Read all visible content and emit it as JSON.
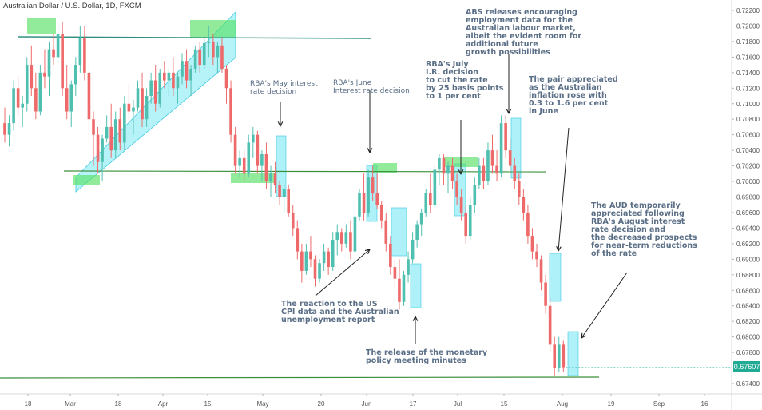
{
  "header": {
    "title": "Australian Dollar / U.S. Dollar, 1D, FXCM"
  },
  "last_price": "0.67607",
  "colors": {
    "bull": "#4fbfb0",
    "bear": "#ee6a6a",
    "highlight_cyan": "#5ee4f2",
    "highlight_green": "#56e066",
    "support_line": "#3a8f3a",
    "resistance_line": "#2f8f7f",
    "annotation_text": "#5a6e86",
    "price_tag": "#22ab94"
  },
  "annotations": [
    {
      "id": "may-rba",
      "text": "RBA's May interest\nrate decision",
      "bold": false
    },
    {
      "id": "june-rba",
      "text": "RBA's June\nInterest rate decision",
      "bold": false
    },
    {
      "id": "july-rba",
      "text": "RBA's July\nI.R. decision\nto cut the rate\nby 25 basis points\nto 1 per cent",
      "bold": true
    },
    {
      "id": "abs-employment",
      "text": "ABS releases encouraging\nemployment data for the\nAustralian labour market,\nalbeit the evident room for\nadditional future\ngrowth possibilities",
      "bold": true
    },
    {
      "id": "inflation",
      "text": "The pair appreciated\nas the Australian\ninflation rose with\n0.3 to 1.6 per cent\nin June",
      "bold": true
    },
    {
      "id": "august-rba",
      "text": "The AUD temporarily\nappreciated following\nRBA's August interest\nrate decision and\nthe decreased prospects\nfor near-term reductions\nof the rate",
      "bold": true
    },
    {
      "id": "us-cpi",
      "text": "The reaction to the US\nCPI data and the Australian\nunemployment report",
      "bold": true
    },
    {
      "id": "minutes",
      "text": "The release of the monetary\npolicy meeting minutes",
      "bold": true
    }
  ],
  "chart_data": {
    "type": "candlestick",
    "title": "Australian Dollar / U.S. Dollar, 1D, FXCM",
    "ylim": [
      0.673,
      0.723
    ],
    "y_ticks": [
      "0.72200",
      "0.72000",
      "0.71800",
      "0.71600",
      "0.71400",
      "0.71200",
      "0.71000",
      "0.70800",
      "0.70600",
      "0.70400",
      "0.70200",
      "0.70000",
      "0.69800",
      "0.69600",
      "0.69400",
      "0.69200",
      "0.69000",
      "0.68800",
      "0.68600",
      "0.68400",
      "0.68200",
      "0.68000",
      "0.67800",
      "0.67600",
      "0.67400"
    ],
    "x_ticks": [
      "18",
      "Mar",
      "18",
      "Apr",
      "15",
      "May",
      "20",
      "Jun",
      "17",
      "Jul",
      "15",
      "Aug",
      "19",
      "Sep",
      "16"
    ],
    "last_price": 0.67607,
    "candles": [
      [
        0.7075,
        0.7095,
        0.705,
        0.706
      ],
      [
        0.706,
        0.7085,
        0.7045,
        0.7075
      ],
      [
        0.7075,
        0.713,
        0.7065,
        0.712
      ],
      [
        0.712,
        0.7135,
        0.7085,
        0.7095
      ],
      [
        0.7095,
        0.711,
        0.707,
        0.71
      ],
      [
        0.71,
        0.716,
        0.709,
        0.715
      ],
      [
        0.715,
        0.7175,
        0.711,
        0.712
      ],
      [
        0.712,
        0.714,
        0.708,
        0.709
      ],
      [
        0.709,
        0.715,
        0.7085,
        0.714
      ],
      [
        0.714,
        0.717,
        0.712,
        0.7135
      ],
      [
        0.7135,
        0.718,
        0.711,
        0.717
      ],
      [
        0.717,
        0.719,
        0.715,
        0.716
      ],
      [
        0.716,
        0.72,
        0.715,
        0.719
      ],
      [
        0.719,
        0.7205,
        0.711,
        0.712
      ],
      [
        0.712,
        0.715,
        0.708,
        0.709
      ],
      [
        0.709,
        0.713,
        0.707,
        0.7125
      ],
      [
        0.7125,
        0.716,
        0.711,
        0.715
      ],
      [
        0.715,
        0.72,
        0.714,
        0.7185
      ],
      [
        0.7185,
        0.72,
        0.713,
        0.714
      ],
      [
        0.714,
        0.715,
        0.705,
        0.708
      ],
      [
        0.708,
        0.709,
        0.702,
        0.706
      ],
      [
        0.706,
        0.707,
        0.701,
        0.7025
      ],
      [
        0.7025,
        0.706,
        0.7,
        0.7055
      ],
      [
        0.7055,
        0.7085,
        0.705,
        0.707
      ],
      [
        0.707,
        0.71,
        0.703,
        0.704
      ],
      [
        0.704,
        0.709,
        0.703,
        0.708
      ],
      [
        0.708,
        0.7095,
        0.704,
        0.705
      ],
      [
        0.705,
        0.711,
        0.704,
        0.71
      ],
      [
        0.71,
        0.7125,
        0.708,
        0.709
      ],
      [
        0.709,
        0.7105,
        0.706,
        0.7095
      ],
      [
        0.7095,
        0.713,
        0.709,
        0.712
      ],
      [
        0.712,
        0.714,
        0.707,
        0.708
      ],
      [
        0.708,
        0.712,
        0.707,
        0.711
      ],
      [
        0.711,
        0.714,
        0.71,
        0.713
      ],
      [
        0.713,
        0.715,
        0.709,
        0.71
      ],
      [
        0.71,
        0.7145,
        0.7095,
        0.714
      ],
      [
        0.714,
        0.7155,
        0.712,
        0.713
      ],
      [
        0.713,
        0.7145,
        0.711,
        0.714
      ],
      [
        0.714,
        0.716,
        0.711,
        0.712
      ],
      [
        0.712,
        0.714,
        0.71,
        0.7135
      ],
      [
        0.7135,
        0.7165,
        0.7125,
        0.7155
      ],
      [
        0.7155,
        0.717,
        0.712,
        0.713
      ],
      [
        0.713,
        0.715,
        0.711,
        0.7145
      ],
      [
        0.7145,
        0.7175,
        0.714,
        0.717
      ],
      [
        0.717,
        0.718,
        0.714,
        0.715
      ],
      [
        0.715,
        0.7185,
        0.7145,
        0.7178
      ],
      [
        0.7178,
        0.72,
        0.716,
        0.718
      ],
      [
        0.718,
        0.719,
        0.715,
        0.716
      ],
      [
        0.716,
        0.718,
        0.714,
        0.7175
      ],
      [
        0.7175,
        0.7185,
        0.714,
        0.7145
      ],
      [
        0.7145,
        0.715,
        0.71,
        0.712
      ],
      [
        0.712,
        0.713,
        0.705,
        0.706
      ],
      [
        0.706,
        0.707,
        0.701,
        0.702
      ],
      [
        0.702,
        0.704,
        0.7005,
        0.703
      ],
      [
        0.703,
        0.704,
        0.7,
        0.701
      ],
      [
        0.701,
        0.706,
        0.7005,
        0.705
      ],
      [
        0.705,
        0.707,
        0.703,
        0.706
      ],
      [
        0.706,
        0.7065,
        0.701,
        0.702
      ],
      [
        0.702,
        0.704,
        0.7,
        0.7035
      ],
      [
        0.7035,
        0.705,
        0.699,
        0.7
      ],
      [
        0.7,
        0.702,
        0.698,
        0.701
      ],
      [
        0.701,
        0.7025,
        0.6985,
        0.6995
      ],
      [
        0.6995,
        0.7,
        0.697,
        0.698
      ],
      [
        0.698,
        0.6995,
        0.696,
        0.699
      ],
      [
        0.699,
        0.6995,
        0.6955,
        0.696
      ],
      [
        0.696,
        0.697,
        0.693,
        0.694
      ],
      [
        0.694,
        0.695,
        0.69,
        0.691
      ],
      [
        0.691,
        0.692,
        0.687,
        0.6885
      ],
      [
        0.6885,
        0.692,
        0.688,
        0.691
      ],
      [
        0.691,
        0.693,
        0.689,
        0.69
      ],
      [
        0.69,
        0.6905,
        0.6865,
        0.6875
      ],
      [
        0.6875,
        0.69,
        0.687,
        0.6895
      ],
      [
        0.6895,
        0.692,
        0.6885,
        0.691
      ],
      [
        0.691,
        0.6915,
        0.688,
        0.689
      ],
      [
        0.689,
        0.6935,
        0.6885,
        0.6925
      ],
      [
        0.6925,
        0.6945,
        0.6905,
        0.6935
      ],
      [
        0.6935,
        0.694,
        0.691,
        0.692
      ],
      [
        0.692,
        0.6945,
        0.6915,
        0.6935
      ],
      [
        0.6935,
        0.695,
        0.69,
        0.691
      ],
      [
        0.691,
        0.696,
        0.6905,
        0.6955
      ],
      [
        0.6955,
        0.699,
        0.695,
        0.6985
      ],
      [
        0.6985,
        0.701,
        0.695,
        0.696
      ],
      [
        0.696,
        0.7015,
        0.6955,
        0.7005
      ],
      [
        0.7005,
        0.702,
        0.6975,
        0.6985
      ],
      [
        0.6985,
        0.701,
        0.6965,
        0.697
      ],
      [
        0.697,
        0.6975,
        0.694,
        0.695
      ],
      [
        0.695,
        0.696,
        0.691,
        0.692
      ],
      [
        0.692,
        0.693,
        0.688,
        0.689
      ],
      [
        0.689,
        0.69,
        0.6865,
        0.6875
      ],
      [
        0.6875,
        0.69,
        0.6835,
        0.6845
      ],
      [
        0.6845,
        0.6885,
        0.684,
        0.688
      ],
      [
        0.688,
        0.691,
        0.687,
        0.69
      ],
      [
        0.69,
        0.6935,
        0.6895,
        0.6925
      ],
      [
        0.6925,
        0.695,
        0.6915,
        0.6945
      ],
      [
        0.6945,
        0.6965,
        0.693,
        0.696
      ],
      [
        0.696,
        0.699,
        0.6955,
        0.6985
      ],
      [
        0.6985,
        0.701,
        0.696,
        0.697
      ],
      [
        0.697,
        0.702,
        0.6965,
        0.7015
      ],
      [
        0.7015,
        0.7035,
        0.6995,
        0.703
      ],
      [
        0.703,
        0.7035,
        0.6995,
        0.701
      ],
      [
        0.701,
        0.7025,
        0.6985,
        0.702
      ],
      [
        0.702,
        0.703,
        0.699,
        0.7
      ],
      [
        0.7,
        0.701,
        0.697,
        0.698
      ],
      [
        0.698,
        0.699,
        0.695,
        0.696
      ],
      [
        0.696,
        0.697,
        0.692,
        0.693
      ],
      [
        0.693,
        0.698,
        0.6925,
        0.697
      ],
      [
        0.697,
        0.7005,
        0.696,
        0.6995
      ],
      [
        0.6995,
        0.703,
        0.699,
        0.702
      ],
      [
        0.702,
        0.703,
        0.699,
        0.7
      ],
      [
        0.7,
        0.705,
        0.6995,
        0.704
      ],
      [
        0.704,
        0.706,
        0.701,
        0.702
      ],
      [
        0.702,
        0.704,
        0.7,
        0.701
      ],
      [
        0.701,
        0.7085,
        0.7005,
        0.7075
      ],
      [
        0.7075,
        0.7085,
        0.703,
        0.704
      ],
      [
        0.704,
        0.7055,
        0.701,
        0.702
      ],
      [
        0.702,
        0.703,
        0.699,
        0.7
      ],
      [
        0.7,
        0.701,
        0.697,
        0.698
      ],
      [
        0.698,
        0.699,
        0.695,
        0.696
      ],
      [
        0.696,
        0.697,
        0.692,
        0.693
      ],
      [
        0.693,
        0.694,
        0.69,
        0.691
      ],
      [
        0.691,
        0.692,
        0.689,
        0.69
      ],
      [
        0.69,
        0.6905,
        0.686,
        0.687
      ],
      [
        0.687,
        0.688,
        0.683,
        0.684
      ],
      [
        0.684,
        0.685,
        0.678,
        0.679
      ],
      [
        0.679,
        0.68,
        0.675,
        0.676
      ],
      [
        0.676,
        0.68,
        0.6755,
        0.679
      ],
      [
        0.679,
        0.6795,
        0.6755,
        0.6761
      ]
    ]
  }
}
